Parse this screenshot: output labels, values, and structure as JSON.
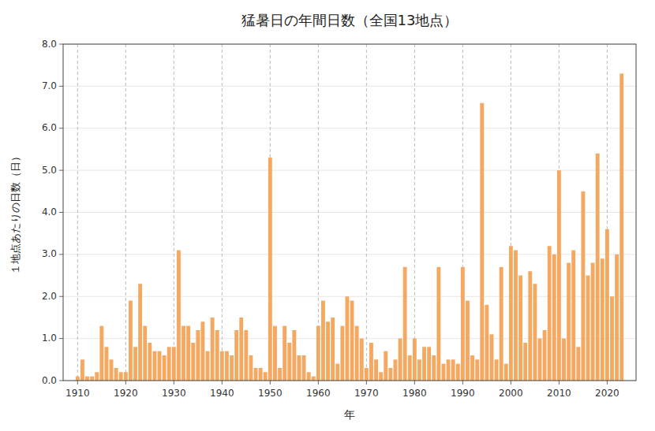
{
  "chart_data": {
    "type": "bar",
    "title": "猛暑日の年間日数（全国13地点）",
    "xlabel": "年",
    "ylabel": "１地点あたりの日数（日）",
    "color": "#F5A860",
    "grid": true,
    "xlim": [
      1907,
      2026
    ],
    "xticks": [
      1910,
      1920,
      1930,
      1940,
      1950,
      1960,
      1970,
      1980,
      1990,
      2000,
      2010,
      2020
    ],
    "ylim": [
      0,
      8.0
    ],
    "yticks": [
      {
        "value": 0.0,
        "label": "0.0"
      },
      {
        "value": 1.0,
        "label": "1.0"
      },
      {
        "value": 2.0,
        "label": "2.0"
      },
      {
        "value": 3.0,
        "label": "3.0"
      },
      {
        "value": 4.0,
        "label": "4.0"
      },
      {
        "value": 5.0,
        "label": "5.0"
      },
      {
        "value": 6.0,
        "label": "6.0"
      },
      {
        "value": 7.0,
        "label": "7.0"
      },
      {
        "value": 8.0,
        "label": "8.0"
      }
    ],
    "x": [
      1910,
      1911,
      1912,
      1913,
      1914,
      1915,
      1916,
      1917,
      1918,
      1919,
      1920,
      1921,
      1922,
      1923,
      1924,
      1925,
      1926,
      1927,
      1928,
      1929,
      1930,
      1931,
      1932,
      1933,
      1934,
      1935,
      1936,
      1937,
      1938,
      1939,
      1940,
      1941,
      1942,
      1943,
      1944,
      1945,
      1946,
      1947,
      1948,
      1949,
      1950,
      1951,
      1952,
      1953,
      1954,
      1955,
      1956,
      1957,
      1958,
      1959,
      1960,
      1961,
      1962,
      1963,
      1964,
      1965,
      1966,
      1967,
      1968,
      1969,
      1970,
      1971,
      1972,
      1973,
      1974,
      1975,
      1976,
      1977,
      1978,
      1979,
      1980,
      1981,
      1982,
      1983,
      1984,
      1985,
      1986,
      1987,
      1988,
      1989,
      1990,
      1991,
      1992,
      1993,
      1994,
      1995,
      1996,
      1997,
      1998,
      1999,
      2000,
      2001,
      2002,
      2003,
      2004,
      2005,
      2006,
      2007,
      2008,
      2009,
      2010,
      2011,
      2012,
      2013,
      2014,
      2015,
      2016,
      2017,
      2018,
      2019,
      2020,
      2021,
      2022,
      2023
    ],
    "values": [
      0.1,
      0.5,
      0.1,
      0.1,
      0.2,
      1.3,
      0.8,
      0.5,
      0.3,
      0.2,
      0.2,
      1.9,
      0.8,
      2.3,
      1.3,
      0.9,
      0.7,
      0.7,
      0.6,
      0.8,
      0.8,
      3.1,
      1.3,
      1.3,
      0.9,
      1.2,
      1.4,
      0.7,
      1.5,
      1.2,
      0.7,
      0.7,
      0.6,
      1.2,
      1.5,
      1.2,
      0.6,
      0.3,
      0.3,
      0.2,
      5.3,
      1.3,
      0.3,
      1.3,
      0.9,
      1.2,
      0.6,
      0.6,
      0.2,
      0.1,
      1.3,
      1.9,
      1.4,
      1.5,
      0.4,
      1.3,
      2.0,
      1.9,
      1.3,
      1.0,
      0.3,
      0.9,
      0.5,
      0.2,
      0.7,
      0.3,
      0.5,
      1.0,
      2.7,
      0.6,
      1.0,
      0.5,
      0.8,
      0.8,
      0.6,
      2.7,
      0.4,
      0.5,
      0.5,
      0.4,
      2.7,
      1.9,
      0.6,
      0.5,
      6.6,
      1.8,
      1.1,
      0.5,
      2.7,
      0.4,
      3.2,
      3.1,
      2.5,
      0.9,
      2.6,
      2.3,
      1.0,
      1.2,
      3.2,
      3.0,
      5.0,
      1.0,
      2.8,
      3.1,
      0.8,
      4.5,
      2.5,
      2.8,
      5.4,
      2.9,
      3.6,
      2.0,
      3.0,
      7.3
    ]
  }
}
